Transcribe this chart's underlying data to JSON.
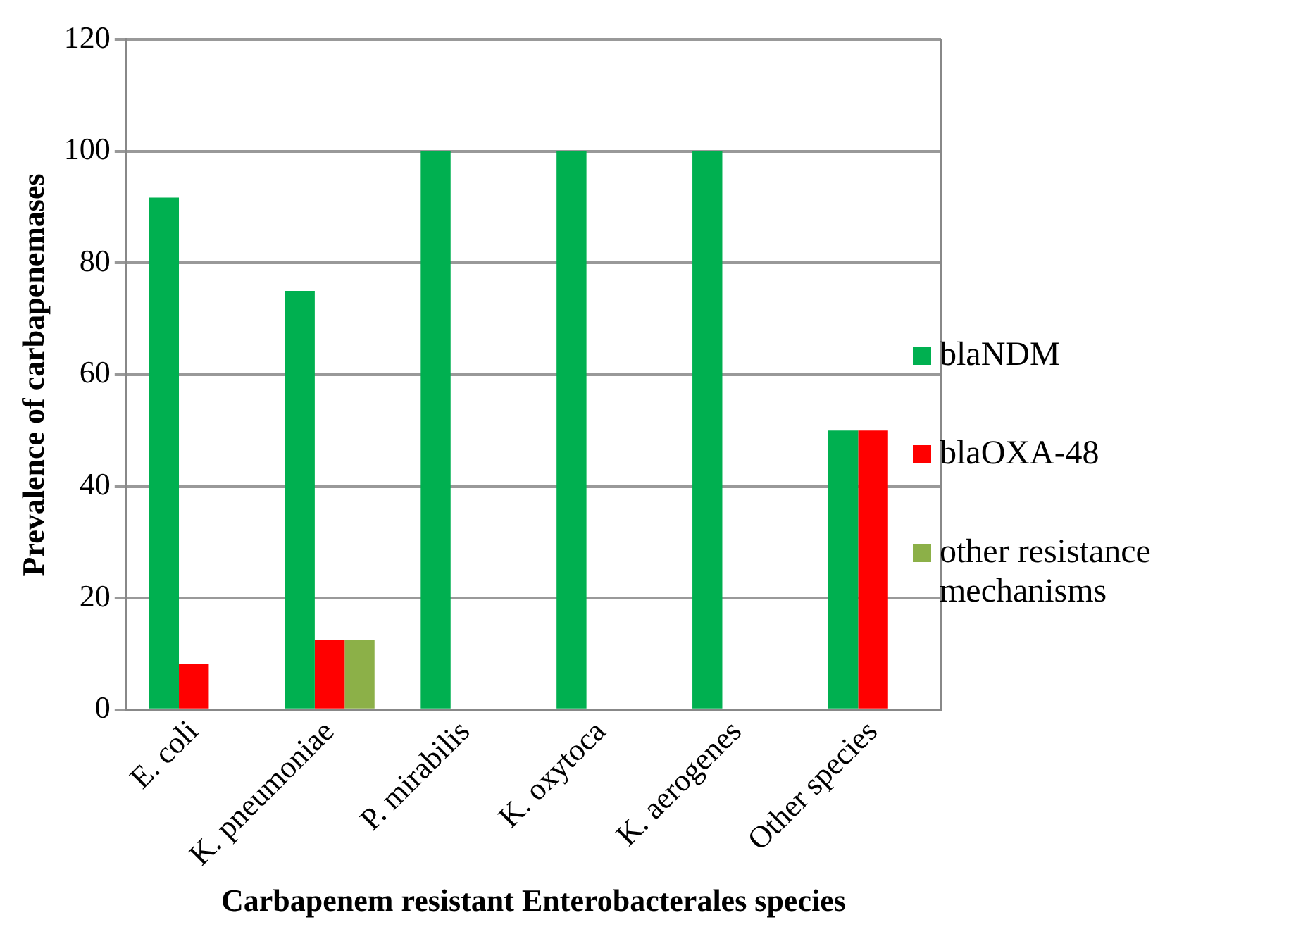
{
  "chart_data": {
    "type": "bar",
    "xlabel": "Carbapenem resistant Enterobacterales species",
    "ylabel": "Prevalence of carbapenemases",
    "categories": [
      "E. coli",
      "K. pneumoniae",
      "P. mirabilis",
      "K. oxytoca",
      "K. aerogenes",
      "Other species"
    ],
    "series": [
      {
        "name": "blaNDM",
        "color": "#00b050",
        "values": [
          91.7,
          75,
          100,
          100,
          100,
          50
        ]
      },
      {
        "name": "blaOXA-48",
        "color": "#ff0000",
        "values": [
          8.3,
          12.5,
          null,
          null,
          null,
          50
        ]
      },
      {
        "name": "other resistance mechanisms",
        "color": "#8cb048",
        "values": [
          null,
          12.5,
          null,
          null,
          null,
          null
        ]
      }
    ],
    "ylim": [
      0,
      120
    ],
    "yticks": [
      0,
      20,
      40,
      60,
      80,
      100,
      120
    ],
    "grid": "y",
    "legend": "right"
  }
}
